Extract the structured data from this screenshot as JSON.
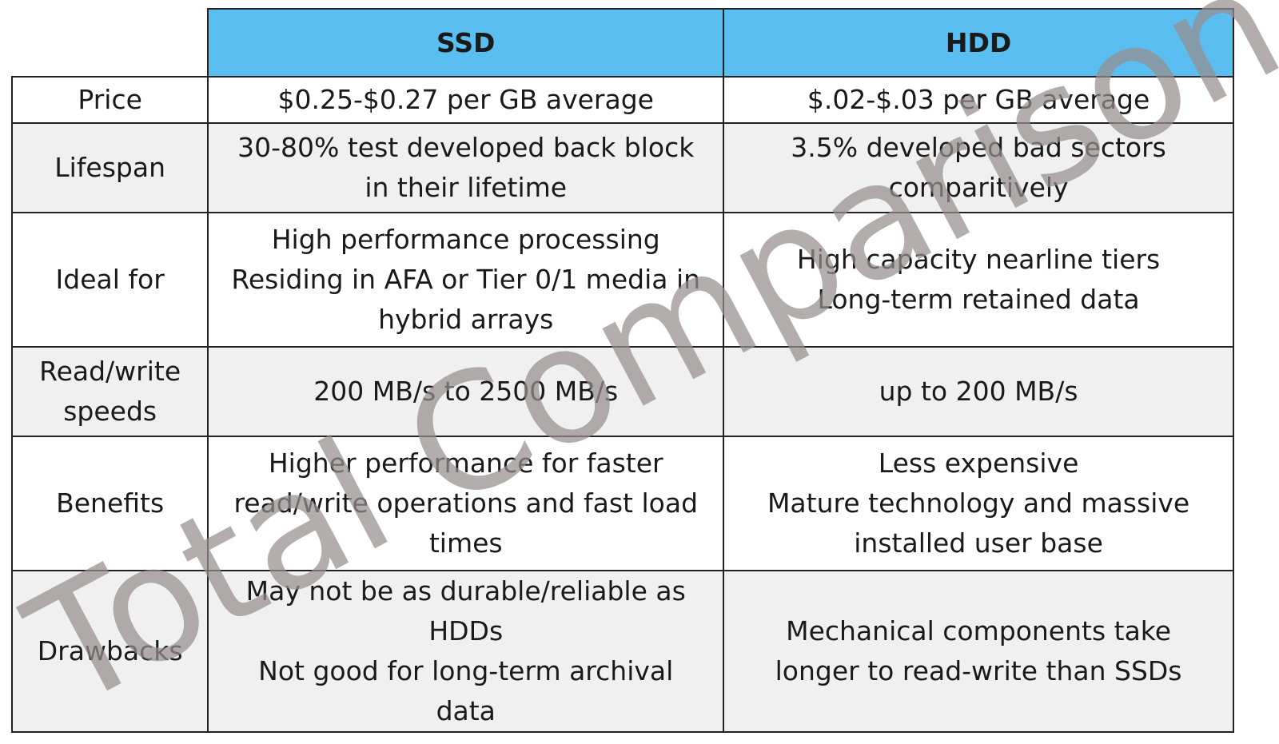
{
  "table": {
    "headers": [
      "",
      "SSD",
      "HDD"
    ],
    "rows": [
      {
        "label": [
          "Price"
        ],
        "ssd": [
          "$0.25-$0.27 per GB average"
        ],
        "hdd": [
          "$.02-$.03 per GB average"
        ]
      },
      {
        "label": [
          "Lifespan"
        ],
        "ssd": [
          "30-80% test developed back block",
          "in their lifetime"
        ],
        "hdd": [
          "3.5% developed bad sectors",
          "comparitively"
        ]
      },
      {
        "label": [
          "Ideal for"
        ],
        "ssd": [
          "High performance processing",
          "Residing in AFA or Tier 0/1 media in",
          "hybrid arrays"
        ],
        "hdd": [
          "High capacity nearline tiers",
          "Long-term retained data"
        ]
      },
      {
        "label": [
          "Read/write",
          "speeds"
        ],
        "ssd": [
          "200 MB/s to 2500 MB/s"
        ],
        "hdd": [
          "up to 200 MB/s"
        ]
      },
      {
        "label": [
          "Benefits"
        ],
        "ssd": [
          "Higher performance for faster",
          "read/write operations and fast load",
          "times"
        ],
        "hdd": [
          "Less expensive",
          "Mature technology and massive",
          "installed user base"
        ]
      },
      {
        "label": [
          "Drawbacks"
        ],
        "ssd": [
          "May not be as durable/reliable as",
          "HDDs",
          "Not good for long-term archival",
          "data"
        ],
        "hdd": [
          "Mechanical components take",
          "longer to read-write than SSDs"
        ]
      }
    ]
  },
  "watermark": {
    "text": "Total Comparison",
    "color": "#968e8e"
  },
  "colors": {
    "header_bg": "#5bbef0",
    "shaded_row": "#f0f0f0",
    "border": "#222222"
  }
}
